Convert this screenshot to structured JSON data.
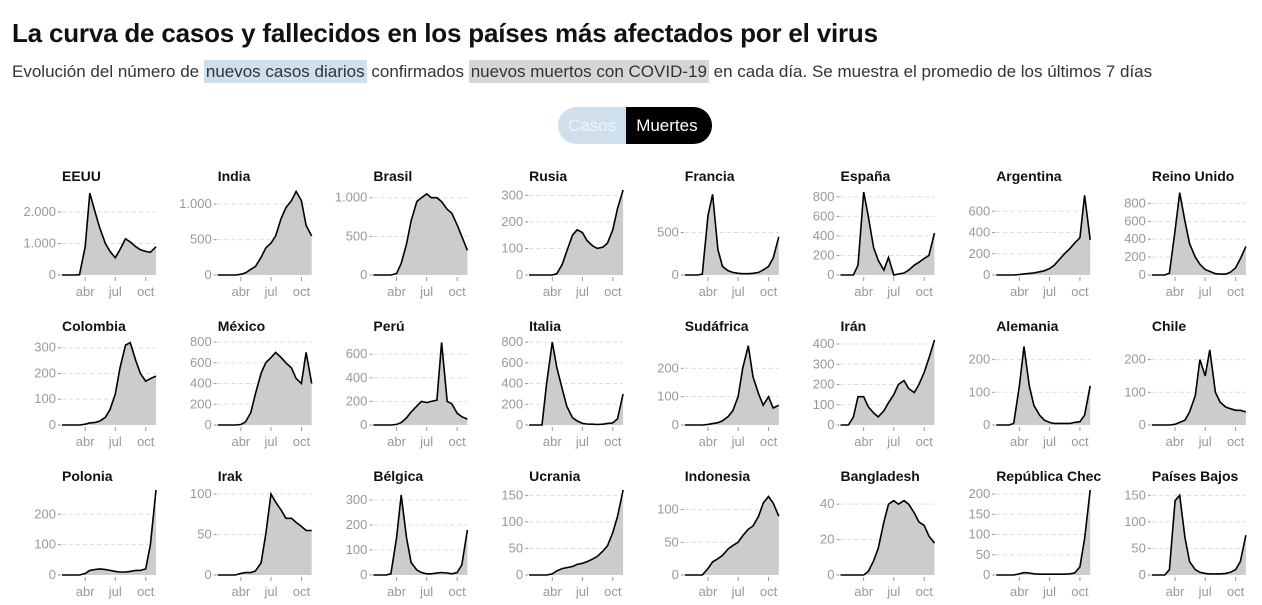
{
  "title": "La curva de casos y fallecidos en los países más afectados por el virus",
  "subtitle": {
    "pre": "Evolución del número de",
    "cases": "nuevos casos diarios",
    "mid": "confirmados",
    "deaths": "nuevos muertos con COVID-19",
    "post": "en cada día. Se muestra el promedio de los últimos 7 días"
  },
  "toggle": {
    "cases": "Casos",
    "deaths": "Muertes",
    "selected": "Muertes"
  },
  "colors": {
    "cases_highlight": "#cfe0ec",
    "deaths_highlight": "#d6d6d6",
    "area": "#cccccc",
    "line": "#000000"
  },
  "chart_data": {
    "type": "area",
    "x": [
      "2020-01-22",
      "2020-02-01",
      "2020-02-15",
      "2020-03-01",
      "2020-03-15",
      "2020-04-01",
      "2020-04-15",
      "2020-05-01",
      "2020-05-15",
      "2020-06-01",
      "2020-06-15",
      "2020-07-01",
      "2020-07-15",
      "2020-08-01",
      "2020-08-15",
      "2020-09-01",
      "2020-09-15",
      "2020-10-01",
      "2020-10-15",
      "2020-11-01"
    ],
    "x_ticks": [
      {
        "date": "2020-04-01",
        "label": "abr"
      },
      {
        "date": "2020-07-01",
        "label": "jul"
      },
      {
        "date": "2020-10-01",
        "label": "oct"
      }
    ],
    "grid": "horizontal dashed",
    "panels": [
      {
        "title": "EEUU",
        "ylim": [
          0,
          2700
        ],
        "yticks": [
          {
            "v": 0,
            "l": "0"
          },
          {
            "v": 1000,
            "l": "1.000"
          },
          {
            "v": 2000,
            "l": "2.000"
          }
        ],
        "values": [
          0,
          0,
          0,
          0,
          10,
          900,
          2600,
          2000,
          1500,
          1000,
          750,
          550,
          800,
          1150,
          1050,
          900,
          800,
          750,
          720,
          900
        ]
      },
      {
        "title": "India",
        "ylim": [
          0,
          1200
        ],
        "yticks": [
          {
            "v": 0,
            "l": "0"
          },
          {
            "v": 500,
            "l": "500"
          },
          {
            "v": 1000,
            "l": "1.000"
          }
        ],
        "values": [
          0,
          0,
          0,
          0,
          0,
          10,
          30,
          80,
          120,
          250,
          380,
          450,
          550,
          800,
          950,
          1050,
          1180,
          1050,
          700,
          550
        ]
      },
      {
        "title": "Brasil",
        "ylim": [
          0,
          1100
        ],
        "yticks": [
          {
            "v": 0,
            "l": "0"
          },
          {
            "v": 500,
            "l": "500"
          },
          {
            "v": 1000,
            "l": "1.000"
          }
        ],
        "values": [
          0,
          0,
          0,
          0,
          0,
          20,
          150,
          400,
          700,
          950,
          1000,
          1050,
          1000,
          1000,
          950,
          850,
          800,
          650,
          500,
          320
        ]
      },
      {
        "title": "Rusia",
        "ylim": [
          0,
          320
        ],
        "yticks": [
          {
            "v": 0,
            "l": "0"
          },
          {
            "v": 100,
            "l": "100"
          },
          {
            "v": 200,
            "l": "200"
          },
          {
            "v": 300,
            "l": "300"
          }
        ],
        "values": [
          0,
          0,
          0,
          0,
          0,
          0,
          5,
          40,
          90,
          150,
          170,
          160,
          130,
          110,
          100,
          105,
          120,
          170,
          250,
          320
        ]
      },
      {
        "title": "Francia",
        "ylim": [
          0,
          1000
        ],
        "yticks": [
          {
            "v": 0,
            "l": "0"
          },
          {
            "v": 500,
            "l": "500"
          }
        ],
        "values": [
          0,
          0,
          0,
          0,
          10,
          700,
          950,
          300,
          100,
          50,
          30,
          20,
          15,
          15,
          20,
          30,
          60,
          100,
          200,
          450
        ]
      },
      {
        "title": "España",
        "ylim": [
          0,
          870
        ],
        "yticks": [
          {
            "v": 0,
            "l": "0"
          },
          {
            "v": 200,
            "l": "200"
          },
          {
            "v": 400,
            "l": "400"
          },
          {
            "v": 600,
            "l": "600"
          },
          {
            "v": 800,
            "l": "800"
          }
        ],
        "values": [
          0,
          0,
          0,
          0,
          100,
          850,
          600,
          280,
          150,
          50,
          180,
          0,
          10,
          20,
          50,
          100,
          130,
          170,
          200,
          430
        ]
      },
      {
        "title": "Argentina",
        "ylim": [
          0,
          800
        ],
        "yticks": [
          {
            "v": 0,
            "l": "0"
          },
          {
            "v": 200,
            "l": "200"
          },
          {
            "v": 400,
            "l": "400"
          },
          {
            "v": 600,
            "l": "600"
          }
        ],
        "values": [
          0,
          0,
          0,
          0,
          0,
          5,
          10,
          15,
          20,
          30,
          40,
          60,
          90,
          150,
          200,
          250,
          300,
          350,
          750,
          330
        ]
      },
      {
        "title": "Reino Unido",
        "ylim": [
          0,
          950
        ],
        "yticks": [
          {
            "v": 0,
            "l": "0"
          },
          {
            "v": 200,
            "l": "200"
          },
          {
            "v": 400,
            "l": "400"
          },
          {
            "v": 600,
            "l": "600"
          },
          {
            "v": 800,
            "l": "800"
          }
        ],
        "values": [
          0,
          0,
          0,
          0,
          20,
          500,
          920,
          600,
          350,
          200,
          120,
          60,
          40,
          15,
          10,
          10,
          30,
          80,
          180,
          320
        ]
      },
      {
        "title": "Colombia",
        "ylim": [
          0,
          330
        ],
        "yticks": [
          {
            "v": 0,
            "l": "0"
          },
          {
            "v": 100,
            "l": "100"
          },
          {
            "v": 200,
            "l": "200"
          },
          {
            "v": 300,
            "l": "300"
          }
        ],
        "values": [
          0,
          0,
          0,
          0,
          0,
          3,
          8,
          10,
          15,
          30,
          60,
          120,
          220,
          310,
          320,
          250,
          200,
          170,
          180,
          190
        ]
      },
      {
        "title": "México",
        "ylim": [
          0,
          820
        ],
        "yticks": [
          {
            "v": 0,
            "l": "0"
          },
          {
            "v": 200,
            "l": "200"
          },
          {
            "v": 400,
            "l": "400"
          },
          {
            "v": 600,
            "l": "600"
          },
          {
            "v": 800,
            "l": "800"
          }
        ],
        "values": [
          0,
          0,
          0,
          0,
          0,
          5,
          30,
          120,
          300,
          500,
          600,
          650,
          700,
          650,
          600,
          550,
          450,
          400,
          700,
          400
        ]
      },
      {
        "title": "Perú",
        "ylim": [
          0,
          720
        ],
        "yticks": [
          {
            "v": 0,
            "l": "0"
          },
          {
            "v": 200,
            "l": "200"
          },
          {
            "v": 400,
            "l": "400"
          },
          {
            "v": 600,
            "l": "600"
          }
        ],
        "values": [
          0,
          0,
          0,
          0,
          0,
          5,
          20,
          60,
          110,
          160,
          200,
          190,
          200,
          210,
          700,
          200,
          180,
          100,
          70,
          50
        ]
      },
      {
        "title": "Italia",
        "ylim": [
          0,
          820
        ],
        "yticks": [
          {
            "v": 0,
            "l": "0"
          },
          {
            "v": 200,
            "l": "200"
          },
          {
            "v": 400,
            "l": "400"
          },
          {
            "v": 600,
            "l": "600"
          },
          {
            "v": 800,
            "l": "800"
          }
        ],
        "values": [
          0,
          0,
          0,
          0,
          400,
          800,
          550,
          350,
          180,
          70,
          40,
          15,
          10,
          8,
          5,
          8,
          15,
          20,
          60,
          300
        ]
      },
      {
        "title": "Sudáfrica",
        "ylim": [
          0,
          300
        ],
        "yticks": [
          {
            "v": 0,
            "l": "0"
          },
          {
            "v": 100,
            "l": "100"
          },
          {
            "v": 200,
            "l": "200"
          }
        ],
        "values": [
          0,
          0,
          0,
          0,
          0,
          2,
          5,
          8,
          15,
          30,
          50,
          100,
          200,
          280,
          170,
          110,
          70,
          100,
          60,
          70
        ]
      },
      {
        "title": "Irán",
        "ylim": [
          0,
          420
        ],
        "yticks": [
          {
            "v": 0,
            "l": "0"
          },
          {
            "v": 100,
            "l": "100"
          },
          {
            "v": 200,
            "l": "200"
          },
          {
            "v": 300,
            "l": "300"
          },
          {
            "v": 400,
            "l": "400"
          }
        ],
        "values": [
          0,
          0,
          0,
          40,
          140,
          140,
          90,
          60,
          40,
          70,
          110,
          150,
          200,
          220,
          180,
          160,
          200,
          260,
          330,
          420
        ]
      },
      {
        "title": "Alemania",
        "ylim": [
          0,
          260
        ],
        "yticks": [
          {
            "v": 0,
            "l": "0"
          },
          {
            "v": 100,
            "l": "100"
          },
          {
            "v": 200,
            "l": "200"
          }
        ],
        "values": [
          0,
          0,
          0,
          0,
          5,
          120,
          240,
          120,
          60,
          30,
          15,
          8,
          5,
          5,
          5,
          5,
          8,
          10,
          30,
          120
        ]
      },
      {
        "title": "Chile",
        "ylim": [
          0,
          260
        ],
        "yticks": [
          {
            "v": 0,
            "l": "0"
          },
          {
            "v": 100,
            "l": "100"
          },
          {
            "v": 200,
            "l": "200"
          }
        ],
        "values": [
          0,
          0,
          0,
          0,
          0,
          2,
          8,
          15,
          40,
          90,
          200,
          150,
          230,
          100,
          70,
          55,
          50,
          45,
          45,
          40
        ]
      },
      {
        "title": "Polonia",
        "ylim": [
          0,
          280
        ],
        "yticks": [
          {
            "v": 0,
            "l": "0"
          },
          {
            "v": 100,
            "l": "100"
          },
          {
            "v": 200,
            "l": "200"
          }
        ],
        "values": [
          0,
          0,
          0,
          0,
          0,
          5,
          15,
          18,
          20,
          18,
          15,
          12,
          10,
          10,
          12,
          15,
          15,
          20,
          100,
          280
        ]
      },
      {
        "title": "Irak",
        "ylim": [
          0,
          105
        ],
        "yticks": [
          {
            "v": 0,
            "l": "0"
          },
          {
            "v": 50,
            "l": "50"
          },
          {
            "v": 100,
            "l": "100"
          }
        ],
        "values": [
          0,
          0,
          0,
          0,
          0,
          2,
          3,
          3,
          5,
          15,
          50,
          100,
          90,
          80,
          70,
          70,
          65,
          60,
          55,
          55
        ]
      },
      {
        "title": "Bélgica",
        "ylim": [
          0,
          340
        ],
        "yticks": [
          {
            "v": 0,
            "l": "0"
          },
          {
            "v": 100,
            "l": "100"
          },
          {
            "v": 200,
            "l": "200"
          },
          {
            "v": 300,
            "l": "300"
          }
        ],
        "values": [
          0,
          0,
          0,
          0,
          5,
          150,
          320,
          150,
          50,
          20,
          10,
          5,
          5,
          8,
          10,
          8,
          5,
          10,
          40,
          180
        ]
      },
      {
        "title": "Ucrania",
        "ylim": [
          0,
          160
        ],
        "yticks": [
          {
            "v": 0,
            "l": "0"
          },
          {
            "v": 50,
            "l": "50"
          },
          {
            "v": 100,
            "l": "100"
          },
          {
            "v": 150,
            "l": "150"
          }
        ],
        "values": [
          0,
          0,
          0,
          0,
          0,
          2,
          8,
          12,
          14,
          16,
          20,
          22,
          25,
          30,
          35,
          45,
          55,
          80,
          110,
          160
        ]
      },
      {
        "title": "Indonesia",
        "ylim": [
          0,
          130
        ],
        "yticks": [
          {
            "v": 0,
            "l": "0"
          },
          {
            "v": 50,
            "l": "50"
          },
          {
            "v": 100,
            "l": "100"
          }
        ],
        "values": [
          0,
          0,
          0,
          0,
          0,
          10,
          20,
          25,
          30,
          40,
          45,
          50,
          60,
          70,
          75,
          90,
          110,
          120,
          110,
          90
        ]
      },
      {
        "title": "Bangladesh",
        "ylim": [
          0,
          48
        ],
        "yticks": [
          {
            "v": 0,
            "l": "0"
          },
          {
            "v": 20,
            "l": "20"
          },
          {
            "v": 40,
            "l": "40"
          }
        ],
        "values": [
          0,
          0,
          0,
          0,
          0,
          0,
          2,
          8,
          15,
          30,
          40,
          42,
          40,
          42,
          40,
          35,
          30,
          28,
          22,
          18
        ]
      },
      {
        "title": "República Chec",
        "ylim": [
          0,
          210
        ],
        "yticks": [
          {
            "v": 0,
            "l": "0"
          },
          {
            "v": 50,
            "l": "50"
          },
          {
            "v": 100,
            "l": "100"
          },
          {
            "v": 150,
            "l": "150"
          },
          {
            "v": 200,
            "l": "200"
          }
        ],
        "values": [
          0,
          0,
          0,
          0,
          0,
          3,
          6,
          5,
          3,
          2,
          2,
          2,
          2,
          2,
          2,
          3,
          5,
          20,
          90,
          210
        ]
      },
      {
        "title": "Países Bajos",
        "ylim": [
          0,
          160
        ],
        "yticks": [
          {
            "v": 0,
            "l": "0"
          },
          {
            "v": 50,
            "l": "50"
          },
          {
            "v": 100,
            "l": "100"
          },
          {
            "v": 150,
            "l": "150"
          }
        ],
        "values": [
          0,
          0,
          0,
          0,
          10,
          140,
          150,
          70,
          25,
          10,
          5,
          3,
          2,
          2,
          2,
          3,
          5,
          10,
          25,
          75
        ]
      }
    ]
  }
}
